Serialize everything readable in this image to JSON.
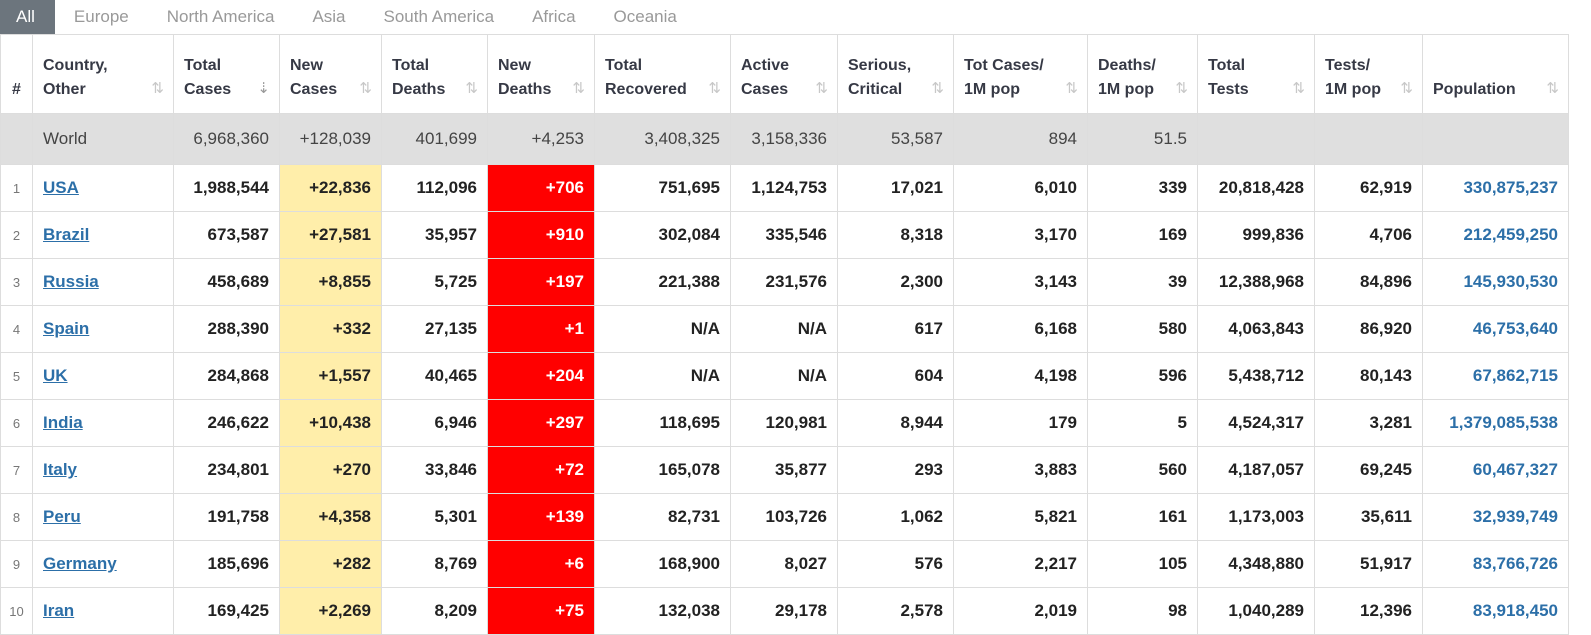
{
  "tabs": [
    "All",
    "Europe",
    "North America",
    "Asia",
    "South America",
    "Africa",
    "Oceania"
  ],
  "columns": [
    {
      "l1": "#",
      "l2": ""
    },
    {
      "l1": "Country,",
      "l2": "Other"
    },
    {
      "l1": "Total",
      "l2": "Cases"
    },
    {
      "l1": "New",
      "l2": "Cases"
    },
    {
      "l1": "Total",
      "l2": "Deaths"
    },
    {
      "l1": "New",
      "l2": "Deaths"
    },
    {
      "l1": "Total",
      "l2": "Recovered"
    },
    {
      "l1": "Active",
      "l2": "Cases"
    },
    {
      "l1": "Serious,",
      "l2": "Critical"
    },
    {
      "l1": "Tot Cases/",
      "l2": "1M pop"
    },
    {
      "l1": "Deaths/",
      "l2": "1M pop"
    },
    {
      "l1": "Total",
      "l2": "Tests"
    },
    {
      "l1": "Tests/",
      "l2": "1M pop"
    },
    {
      "l1": "Population",
      "l2": ""
    }
  ],
  "sort_icons": {
    "active": "sort-desc-icon",
    "inactive": "sort-icon"
  },
  "world": [
    "",
    "World",
    "6,968,360",
    "+128,039",
    "401,699",
    "+4,253",
    "3,408,325",
    "3,158,336",
    "53,587",
    "894",
    "51.5",
    "",
    "",
    ""
  ],
  "rows": [
    [
      "1",
      "USA",
      "1,988,544",
      "+22,836",
      "112,096",
      "+706",
      "751,695",
      "1,124,753",
      "17,021",
      "6,010",
      "339",
      "20,818,428",
      "62,919",
      "330,875,237"
    ],
    [
      "2",
      "Brazil",
      "673,587",
      "+27,581",
      "35,957",
      "+910",
      "302,084",
      "335,546",
      "8,318",
      "3,170",
      "169",
      "999,836",
      "4,706",
      "212,459,250"
    ],
    [
      "3",
      "Russia",
      "458,689",
      "+8,855",
      "5,725",
      "+197",
      "221,388",
      "231,576",
      "2,300",
      "3,143",
      "39",
      "12,388,968",
      "84,896",
      "145,930,530"
    ],
    [
      "4",
      "Spain",
      "288,390",
      "+332",
      "27,135",
      "+1",
      "N/A",
      "N/A",
      "617",
      "6,168",
      "580",
      "4,063,843",
      "86,920",
      "46,753,640"
    ],
    [
      "5",
      "UK",
      "284,868",
      "+1,557",
      "40,465",
      "+204",
      "N/A",
      "N/A",
      "604",
      "4,198",
      "596",
      "5,438,712",
      "80,143",
      "67,862,715"
    ],
    [
      "6",
      "India",
      "246,622",
      "+10,438",
      "6,946",
      "+297",
      "118,695",
      "120,981",
      "8,944",
      "179",
      "5",
      "4,524,317",
      "3,281",
      "1,379,085,538"
    ],
    [
      "7",
      "Italy",
      "234,801",
      "+270",
      "33,846",
      "+72",
      "165,078",
      "35,877",
      "293",
      "3,883",
      "560",
      "4,187,057",
      "69,245",
      "60,467,327"
    ],
    [
      "8",
      "Peru",
      "191,758",
      "+4,358",
      "5,301",
      "+139",
      "82,731",
      "103,726",
      "1,062",
      "5,821",
      "161",
      "1,173,003",
      "35,611",
      "32,939,749"
    ],
    [
      "9",
      "Germany",
      "185,696",
      "+282",
      "8,769",
      "+6",
      "168,900",
      "8,027",
      "576",
      "2,217",
      "105",
      "4,348,880",
      "51,917",
      "83,766,726"
    ],
    [
      "10",
      "Iran",
      "169,425",
      "+2,269",
      "8,209",
      "+75",
      "132,038",
      "29,178",
      "2,578",
      "2,019",
      "98",
      "1,040,289",
      "12,396",
      "83,918,450"
    ]
  ],
  "colors": {
    "tab_active_bg": "#6c757d",
    "new_cases_bg": "#ffeeaa",
    "new_deaths_bg": "#ff0000",
    "world_row_bg": "#dfdfdf",
    "link": "#2c6fa8"
  }
}
